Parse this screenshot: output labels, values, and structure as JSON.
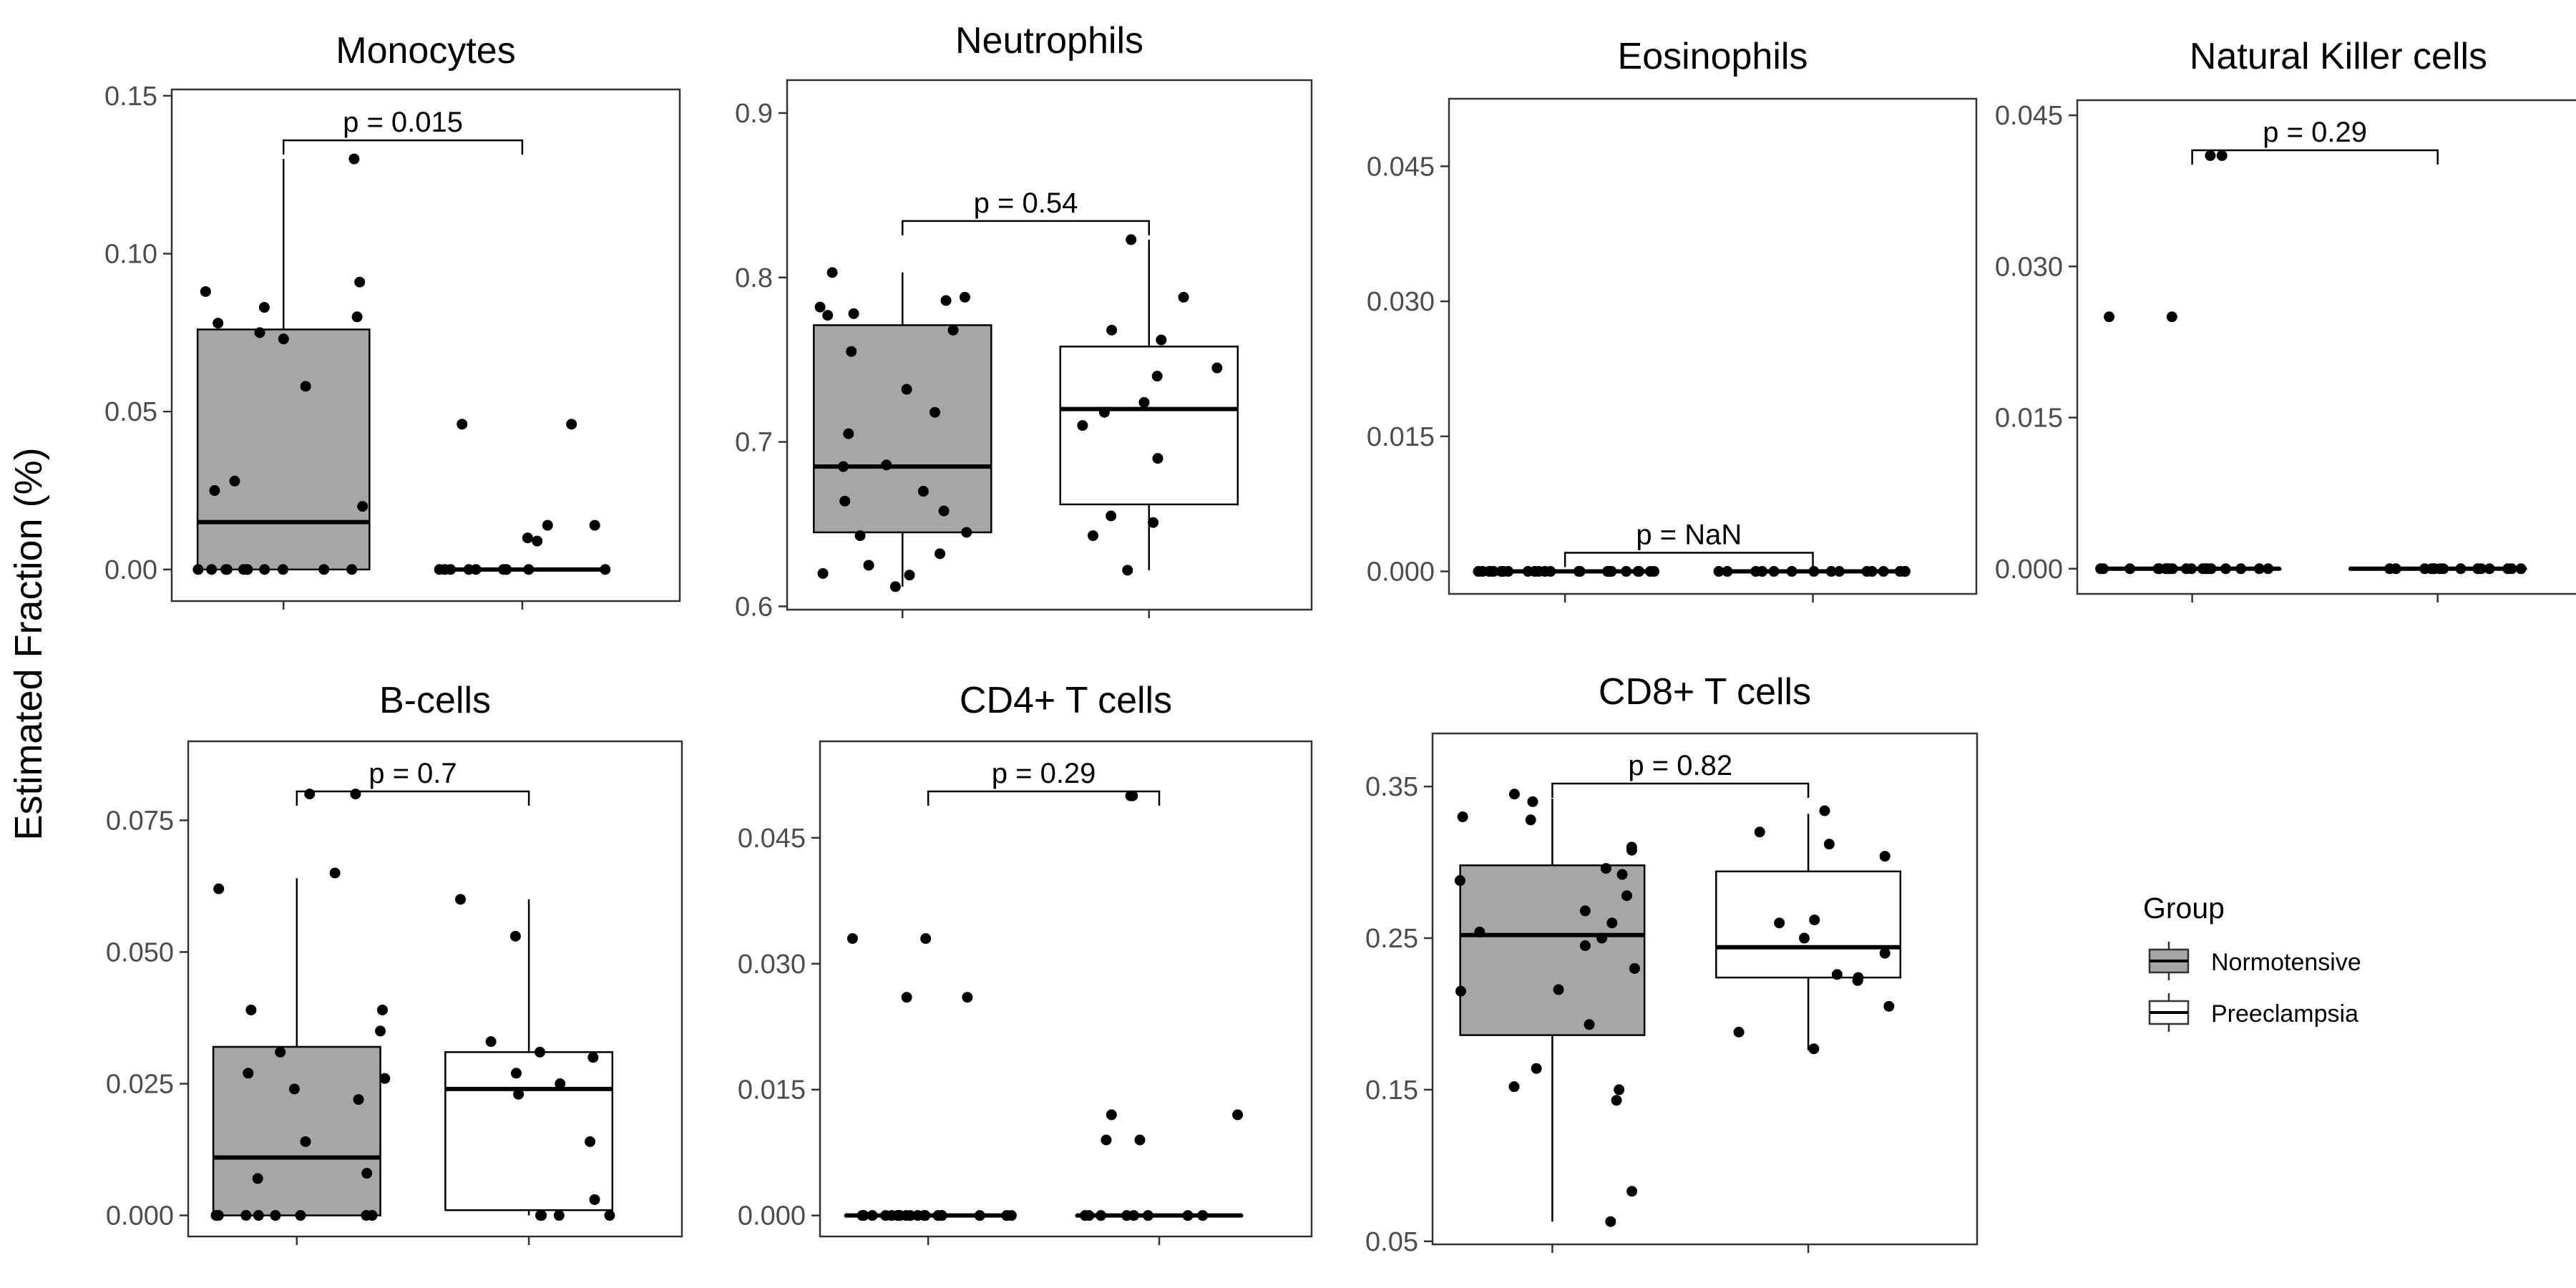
{
  "ylabel": "Estimated Fraction (%)",
  "legend": {
    "title": "Group",
    "items": [
      "Normotensive",
      "Preeclampsia"
    ],
    "colors": [
      "#a6a6a6",
      "#ffffff"
    ]
  },
  "chart_data": [
    {
      "type": "box",
      "title": "Monocytes",
      "categories": [
        "Normotensive",
        "Preeclampsia"
      ],
      "ylim": [
        -0.01,
        0.152
      ],
      "yticks": [
        0.0,
        0.05,
        0.1,
        0.15
      ],
      "ytick_labels": [
        "0.00",
        "0.05",
        "0.10",
        "0.15"
      ],
      "p_label": "p = 0.015",
      "series": [
        {
          "stats": {
            "min": 0.0,
            "q1": 0.0,
            "median": 0.015,
            "q3": 0.076,
            "max": 0.13
          },
          "points": [
            0.13,
            0.091,
            0.088,
            0.083,
            0.08,
            0.078,
            0.075,
            0.073,
            0.058,
            0.028,
            0.025,
            0.02,
            0.0,
            0.0,
            0.0,
            0.0,
            0.0,
            0.0,
            0.0,
            0.0,
            0.0,
            0.0,
            0.0
          ]
        },
        {
          "stats": {
            "min": 0.0,
            "q1": 0.0,
            "median": 0.0,
            "q3": 0.0,
            "max": 0.0
          },
          "points": [
            0.046,
            0.046,
            0.014,
            0.014,
            0.01,
            0.009,
            0.0,
            0.0,
            0.0,
            0.0,
            0.0,
            0.0,
            0.0,
            0.0,
            0.0,
            0.0
          ]
        }
      ]
    },
    {
      "type": "box",
      "title": "Neutrophils",
      "categories": [
        "Normotensive",
        "Preeclampsia"
      ],
      "ylim": [
        0.598,
        0.92
      ],
      "yticks": [
        0.6,
        0.7,
        0.8,
        0.9
      ],
      "ytick_labels": [
        "0.6",
        "0.7",
        "0.8",
        "0.9"
      ],
      "p_label": "p = 0.54",
      "series": [
        {
          "stats": {
            "min": 0.612,
            "q1": 0.645,
            "median": 0.685,
            "q3": 0.771,
            "max": 0.803
          },
          "points": [
            0.803,
            0.788,
            0.786,
            0.782,
            0.778,
            0.777,
            0.768,
            0.755,
            0.732,
            0.718,
            0.705,
            0.686,
            0.685,
            0.67,
            0.664,
            0.658,
            0.645,
            0.643,
            0.632,
            0.625,
            0.62,
            0.619,
            0.612
          ]
        },
        {
          "stats": {
            "min": 0.622,
            "q1": 0.662,
            "median": 0.72,
            "q3": 0.758,
            "max": 0.823
          },
          "points": [
            0.823,
            0.788,
            0.768,
            0.762,
            0.745,
            0.74,
            0.724,
            0.718,
            0.71,
            0.69,
            0.655,
            0.651,
            0.643,
            0.622
          ]
        }
      ]
    },
    {
      "type": "box",
      "title": "Eosinophils",
      "categories": [
        "Normotensive",
        "Preeclampsia"
      ],
      "ylim": [
        -0.0025,
        0.0525
      ],
      "yticks": [
        0.0,
        0.015,
        0.03,
        0.045
      ],
      "ytick_labels": [
        "0.000",
        "0.015",
        "0.030",
        "0.045"
      ],
      "p_label": "p = NaN",
      "series": [
        {
          "stats": {
            "min": 0.0,
            "q1": 0.0,
            "median": 0.0,
            "q3": 0.0,
            "max": 0.0
          },
          "points": [
            0.0,
            0.0,
            0.0,
            0.0,
            0.0,
            0.0,
            0.0,
            0.0,
            0.0,
            0.0,
            0.0,
            0.0,
            0.0,
            0.0,
            0.0,
            0.0,
            0.0,
            0.0,
            0.0,
            0.0,
            0.0,
            0.0,
            0.0
          ]
        },
        {
          "stats": {
            "min": 0.0,
            "q1": 0.0,
            "median": 0.0,
            "q3": 0.0,
            "max": 0.0
          },
          "points": [
            0.0,
            0.0,
            0.0,
            0.0,
            0.0,
            0.0,
            0.0,
            0.0,
            0.0,
            0.0,
            0.0,
            0.0,
            0.0,
            0.0,
            0.0,
            0.0
          ]
        }
      ]
    },
    {
      "type": "box",
      "title": "Natural Killer cells",
      "categories": [
        "Normotensive",
        "Preeclampsia"
      ],
      "ylim": [
        -0.0025,
        0.0465
      ],
      "yticks": [
        0.0,
        0.015,
        0.03,
        0.045
      ],
      "ytick_labels": [
        "0.000",
        "0.015",
        "0.030",
        "0.045"
      ],
      "p_label": "p = 0.29",
      "series": [
        {
          "stats": {
            "min": 0.0,
            "q1": 0.0,
            "median": 0.0,
            "q3": 0.0,
            "max": 0.0
          },
          "points": [
            0.041,
            0.041,
            0.025,
            0.025,
            0.0,
            0.0,
            0.0,
            0.0,
            0.0,
            0.0,
            0.0,
            0.0,
            0.0,
            0.0,
            0.0,
            0.0,
            0.0,
            0.0,
            0.0,
            0.0,
            0.0,
            0.0,
            0.0
          ]
        },
        {
          "stats": {
            "min": 0.0,
            "q1": 0.0,
            "median": 0.0,
            "q3": 0.0,
            "max": 0.0
          },
          "points": [
            0.0,
            0.0,
            0.0,
            0.0,
            0.0,
            0.0,
            0.0,
            0.0,
            0.0,
            0.0,
            0.0,
            0.0,
            0.0,
            0.0,
            0.0,
            0.0
          ]
        }
      ]
    },
    {
      "type": "box",
      "title": "B-cells",
      "categories": [
        "Normotensive",
        "Preeclampsia"
      ],
      "ylim": [
        -0.004,
        0.09
      ],
      "yticks": [
        0.0,
        0.025,
        0.05,
        0.075
      ],
      "ytick_labels": [
        "0.000",
        "0.025",
        "0.050",
        "0.075"
      ],
      "p_label": "p = 0.7",
      "series": [
        {
          "stats": {
            "min": 0.0,
            "q1": 0.0,
            "median": 0.011,
            "q3": 0.032,
            "max": 0.064
          },
          "points": [
            0.08,
            0.08,
            0.065,
            0.062,
            0.039,
            0.039,
            0.035,
            0.031,
            0.027,
            0.026,
            0.024,
            0.022,
            0.014,
            0.008,
            0.007,
            0.0,
            0.0,
            0.0,
            0.0,
            0.0,
            0.0,
            0.0,
            0.0
          ]
        },
        {
          "stats": {
            "min": 0.0,
            "q1": 0.001,
            "median": 0.024,
            "q3": 0.031,
            "max": 0.06
          },
          "points": [
            0.06,
            0.053,
            0.033,
            0.031,
            0.03,
            0.027,
            0.025,
            0.023,
            0.014,
            0.003,
            0.0,
            0.0,
            0.0,
            0.0
          ]
        }
      ]
    },
    {
      "type": "box",
      "title": "CD4+ T cells",
      "categories": [
        "Normotensive",
        "Preeclampsia"
      ],
      "ylim": [
        -0.0025,
        0.0565
      ],
      "yticks": [
        0.0,
        0.015,
        0.03,
        0.045
      ],
      "ytick_labels": [
        "0.000",
        "0.015",
        "0.030",
        "0.045"
      ],
      "p_label": "p = 0.29",
      "series": [
        {
          "stats": {
            "min": 0.0,
            "q1": 0.0,
            "median": 0.0,
            "q3": 0.0,
            "max": 0.0
          },
          "points": [
            0.033,
            0.033,
            0.026,
            0.026,
            0.0,
            0.0,
            0.0,
            0.0,
            0.0,
            0.0,
            0.0,
            0.0,
            0.0,
            0.0,
            0.0,
            0.0,
            0.0,
            0.0,
            0.0,
            0.0,
            0.0,
            0.0,
            0.0
          ]
        },
        {
          "stats": {
            "min": 0.0,
            "q1": 0.0,
            "median": 0.0,
            "q3": 0.0,
            "max": 0.0
          },
          "points": [
            0.05,
            0.05,
            0.012,
            0.012,
            0.009,
            0.009,
            0.0,
            0.0,
            0.0,
            0.0,
            0.0,
            0.0,
            0.0,
            0.0
          ]
        }
      ]
    },
    {
      "type": "box",
      "title": "CD8+ T cells",
      "categories": [
        "Normotensive",
        "Preeclampsia"
      ],
      "ylim": [
        0.048,
        0.385
      ],
      "yticks": [
        0.05,
        0.15,
        0.25,
        0.35
      ],
      "ytick_labels": [
        "0.05",
        "0.15",
        "0.25",
        "0.35"
      ],
      "p_label": "p = 0.82",
      "series": [
        {
          "stats": {
            "min": 0.063,
            "q1": 0.186,
            "median": 0.252,
            "q3": 0.298,
            "max": 0.342
          },
          "points": [
            0.345,
            0.34,
            0.33,
            0.328,
            0.31,
            0.308,
            0.296,
            0.292,
            0.288,
            0.278,
            0.268,
            0.26,
            0.254,
            0.25,
            0.245,
            0.23,
            0.216,
            0.215,
            0.193,
            0.164,
            0.152,
            0.15,
            0.143,
            0.083,
            0.063
          ]
        },
        {
          "stats": {
            "min": 0.176,
            "q1": 0.224,
            "median": 0.244,
            "q3": 0.294,
            "max": 0.332
          },
          "points": [
            0.334,
            0.32,
            0.312,
            0.304,
            0.262,
            0.26,
            0.25,
            0.24,
            0.226,
            0.224,
            0.222,
            0.205,
            0.188,
            0.177
          ]
        }
      ]
    }
  ]
}
